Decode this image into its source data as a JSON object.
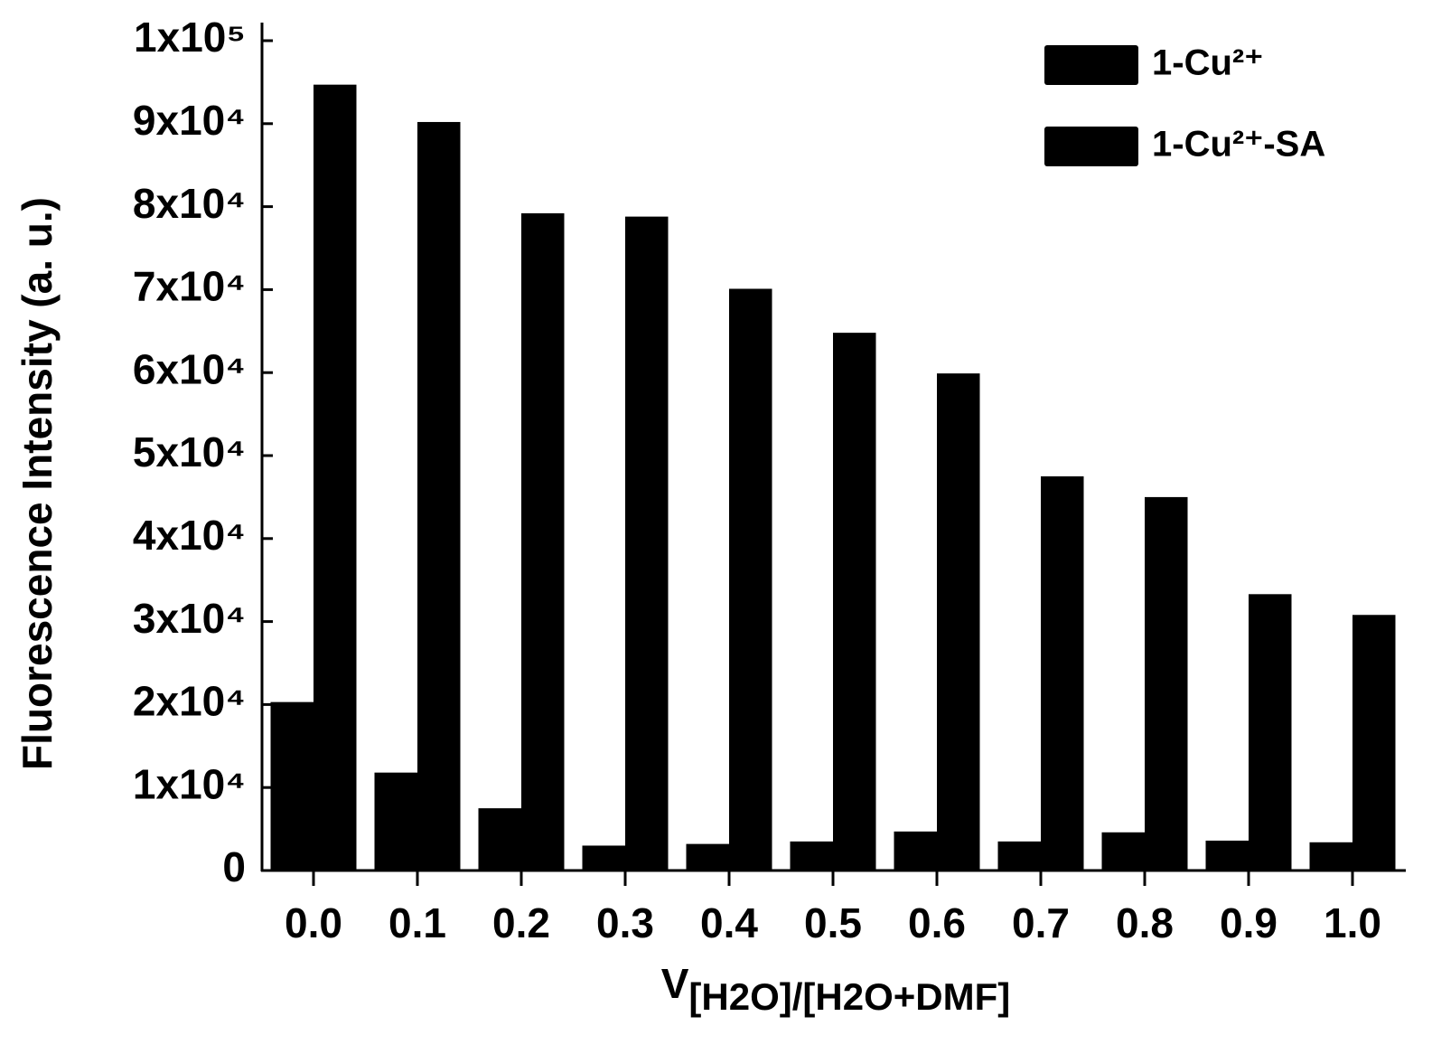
{
  "chart_data": {
    "type": "bar",
    "y_label": "Fluorescence Intensity (a. u.)",
    "x_label": {
      "text": "V",
      "subscript": "[H2O]/[H2O+DMF]"
    },
    "categories": [
      "0.0",
      "0.1",
      "0.2",
      "0.3",
      "0.4",
      "0.5",
      "0.6",
      "0.7",
      "0.8",
      "0.9",
      "1.0"
    ],
    "series": [
      {
        "name": "1-Cu²⁺",
        "color": "#000000",
        "values": [
          20300,
          11800,
          7500,
          3000,
          3200,
          3500,
          4700,
          3500,
          4600,
          3600,
          3400
        ]
      },
      {
        "name": "1-Cu²⁺-SA",
        "color": "#000000",
        "values": [
          94700,
          90200,
          79200,
          78800,
          70100,
          64800,
          59900,
          47500,
          45000,
          33300,
          30800
        ]
      }
    ],
    "ylim": [
      0,
      100000
    ],
    "yticks": [
      0,
      {
        "value": 10000,
        "label": "1x10⁴"
      },
      {
        "value": 20000,
        "label": "2x10⁴"
      },
      {
        "value": 30000,
        "label": "3x10⁴"
      },
      {
        "value": 40000,
        "label": "4x10⁴"
      },
      {
        "value": 50000,
        "label": "5x10⁴"
      },
      {
        "value": 60000,
        "label": "6x10⁴"
      },
      {
        "value": 70000,
        "label": "7x10⁴"
      },
      {
        "value": 80000,
        "label": "8x10⁴"
      },
      {
        "value": 90000,
        "label": "9x10⁴"
      },
      {
        "value": 100000,
        "label": "1x10⁵"
      }
    ],
    "grid": false,
    "legend": "top-right"
  }
}
